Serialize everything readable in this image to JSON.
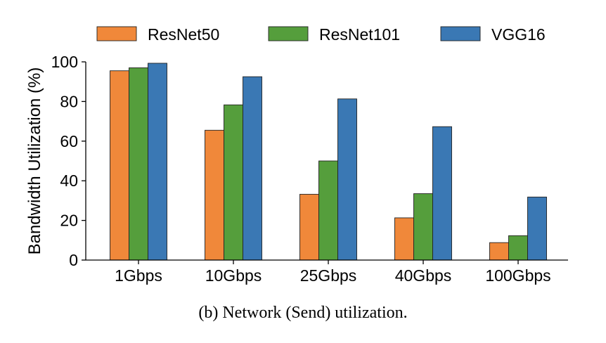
{
  "caption": "(b) Network (Send) utilization.",
  "chart_data": {
    "type": "bar",
    "categories": [
      "1Gbps",
      "10Gbps",
      "25Gbps",
      "40Gbps",
      "100Gbps"
    ],
    "series": [
      {
        "name": "ResNet50",
        "color": "#f0883a",
        "values": [
          95.5,
          65.5,
          33.2,
          21.3,
          8.8
        ]
      },
      {
        "name": "ResNet101",
        "color": "#559e3c",
        "values": [
          97.0,
          78.3,
          50.0,
          33.5,
          12.3
        ]
      },
      {
        "name": "VGG16",
        "color": "#3a78b4",
        "values": [
          99.3,
          92.5,
          81.3,
          67.3,
          31.8
        ]
      }
    ],
    "ylabel": "Bandwidth Utilization (%)",
    "xlabel": "",
    "ylim": [
      0,
      100
    ],
    "yticks": [
      0,
      20,
      40,
      60,
      80,
      100
    ],
    "legend_position": "top",
    "grid": false
  }
}
